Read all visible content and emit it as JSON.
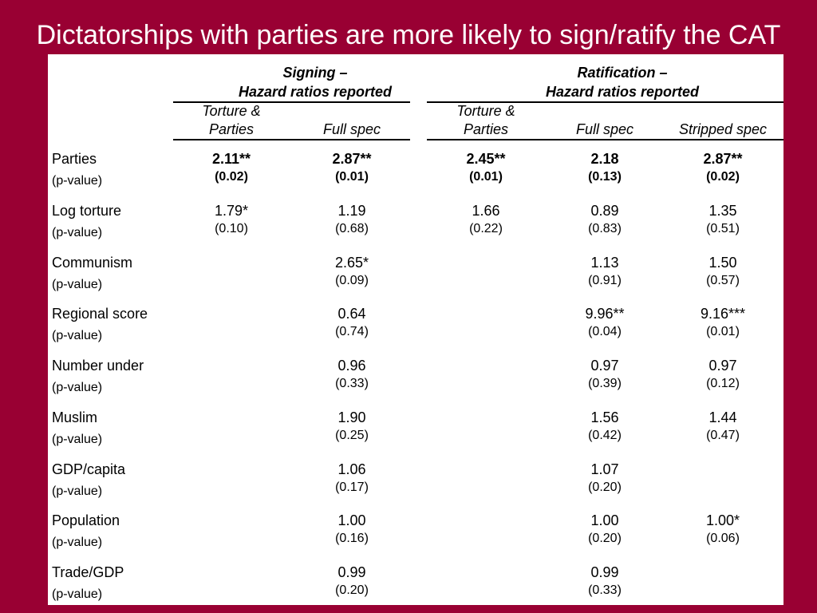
{
  "title": "Dictatorships with parties are more likely to sign/ratify the CAT",
  "header": {
    "signing_line1": "Signing –",
    "signing_line2": "Hazard ratios reported",
    "ratification_line1": "Ratification –",
    "ratification_line2": "Hazard ratios reported",
    "columns": [
      {
        "line1": "Torture &",
        "line2": "Parties"
      },
      {
        "line1": "",
        "line2": "Full spec"
      },
      {
        "line1": "Torture &",
        "line2": "Parties"
      },
      {
        "line1": "",
        "line2": "Full spec"
      },
      {
        "line1": "",
        "line2": "Stripped spec"
      }
    ]
  },
  "rows": [
    {
      "label": "Parties",
      "plabel": "(p-value)",
      "bold": true,
      "values": [
        "2.11**",
        "2.87**",
        "2.45**",
        "2.18",
        "2.87**"
      ],
      "pvalues": [
        "(0.02)",
        "(0.01)",
        "(0.01)",
        "(0.13)",
        "(0.02)"
      ]
    },
    {
      "label": "Log torture",
      "plabel": "(p-value)",
      "bold": false,
      "values": [
        "1.79*",
        "1.19",
        "1.66",
        "0.89",
        "1.35"
      ],
      "pvalues": [
        "(0.10)",
        "(0.68)",
        "(0.22)",
        "(0.83)",
        "(0.51)"
      ]
    },
    {
      "label": "Communism",
      "plabel": "(p-value)",
      "bold": false,
      "values": [
        "",
        "2.65*",
        "",
        "1.13",
        "1.50"
      ],
      "pvalues": [
        "",
        "(0.09)",
        "",
        "(0.91)",
        "(0.57)"
      ]
    },
    {
      "label": "Regional score",
      "plabel": "(p-value)",
      "bold": false,
      "values": [
        "",
        "0.64",
        "",
        "9.96**",
        "9.16***"
      ],
      "pvalues": [
        "",
        "(0.74)",
        "",
        "(0.04)",
        "(0.01)"
      ]
    },
    {
      "label": "Number under",
      "plabel": "(p-value)",
      "bold": false,
      "values": [
        "",
        "0.96",
        "",
        "0.97",
        "0.97"
      ],
      "pvalues": [
        "",
        "(0.33)",
        "",
        "(0.39)",
        "(0.12)"
      ]
    },
    {
      "label": "Muslim",
      "plabel": "(p-value)",
      "bold": false,
      "values": [
        "",
        "1.90",
        "",
        "1.56",
        "1.44"
      ],
      "pvalues": [
        "",
        "(0.25)",
        "",
        "(0.42)",
        "(0.47)"
      ]
    },
    {
      "label": "GDP/capita",
      "plabel": "(p-value)",
      "bold": false,
      "values": [
        "",
        "1.06",
        "",
        "1.07",
        ""
      ],
      "pvalues": [
        "",
        "(0.17)",
        "",
        "(0.20)",
        ""
      ]
    },
    {
      "label": "Population",
      "plabel": "(p-value)",
      "bold": false,
      "values": [
        "",
        "1.00",
        "",
        "1.00",
        "1.00*"
      ],
      "pvalues": [
        "",
        "(0.16)",
        "",
        "(0.20)",
        "(0.06)"
      ]
    },
    {
      "label": "Trade/GDP",
      "plabel": "(p-value)",
      "bold": false,
      "values": [
        "",
        "0.99",
        "",
        "0.99",
        ""
      ],
      "pvalues": [
        "",
        "(0.20)",
        "",
        "(0.33)",
        ""
      ]
    }
  ]
}
